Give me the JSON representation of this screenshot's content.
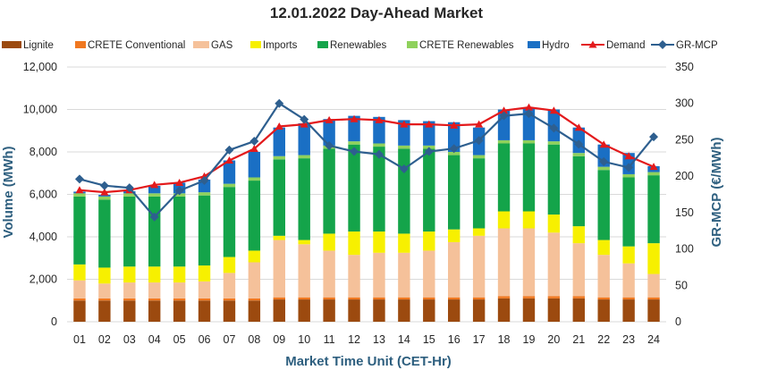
{
  "chart_data": {
    "type": "bar",
    "stacked": true,
    "title": "12.01.2022  Day-Ahead Market",
    "xlabel": "Market Time Unit (CET-Hr)",
    "ylabel": "Volume (MWh)",
    "y2label": "GR-MCP (€/MWh)",
    "ylim": [
      0,
      12000
    ],
    "y2lim": [
      0,
      350
    ],
    "yticks": [
      0,
      2000,
      4000,
      6000,
      8000,
      10000,
      12000
    ],
    "ytick_labels": [
      "0",
      "2,000",
      "4,000",
      "6,000",
      "8,000",
      "10,000",
      "12,000"
    ],
    "y2ticks": [
      0,
      50,
      100,
      150,
      200,
      250,
      300,
      350
    ],
    "categories": [
      "01",
      "02",
      "03",
      "04",
      "05",
      "06",
      "07",
      "08",
      "09",
      "10",
      "11",
      "12",
      "13",
      "14",
      "15",
      "16",
      "17",
      "18",
      "19",
      "20",
      "21",
      "22",
      "23",
      "24"
    ],
    "series": [
      {
        "name": "Lignite",
        "kind": "bar",
        "color": "#9c4a0f",
        "values": [
          1000,
          1000,
          1000,
          1000,
          1000,
          1000,
          1000,
          1000,
          1050,
          1050,
          1050,
          1050,
          1050,
          1050,
          1050,
          1050,
          1050,
          1100,
          1100,
          1100,
          1100,
          1050,
          1050,
          1050
        ]
      },
      {
        "name": "CRETE Conventional",
        "kind": "bar",
        "color": "#f07820",
        "values": [
          100,
          100,
          100,
          100,
          100,
          100,
          100,
          100,
          100,
          100,
          100,
          100,
          100,
          100,
          100,
          100,
          100,
          100,
          100,
          100,
          100,
          100,
          100,
          100
        ]
      },
      {
        "name": "GAS",
        "kind": "bar",
        "color": "#f5c19a",
        "values": [
          850,
          700,
          750,
          750,
          750,
          800,
          1200,
          1700,
          2700,
          2500,
          2200,
          2000,
          2100,
          2100,
          2200,
          2600,
          2900,
          3200,
          3200,
          3000,
          2500,
          2000,
          1600,
          1100
        ]
      },
      {
        "name": "Imports",
        "kind": "bar",
        "color": "#f7f000",
        "values": [
          750,
          750,
          750,
          750,
          750,
          750,
          750,
          550,
          200,
          200,
          800,
          1100,
          1000,
          900,
          900,
          600,
          350,
          800,
          800,
          850,
          800,
          700,
          800,
          1450
        ]
      },
      {
        "name": "Renewables",
        "kind": "bar",
        "color": "#14a44a",
        "values": [
          3200,
          3200,
          3300,
          3300,
          3300,
          3300,
          3300,
          3300,
          3600,
          3850,
          4000,
          4100,
          4000,
          4000,
          3900,
          3500,
          3300,
          3200,
          3200,
          3300,
          3300,
          3300,
          3250,
          3200
        ]
      },
      {
        "name": "CRETE Renewables",
        "kind": "bar",
        "color": "#8fd15c",
        "values": [
          150,
          150,
          150,
          150,
          150,
          150,
          150,
          150,
          150,
          150,
          150,
          150,
          150,
          150,
          150,
          150,
          150,
          150,
          150,
          150,
          150,
          150,
          150,
          150
        ]
      },
      {
        "name": "Hydro",
        "kind": "bar",
        "color": "#1a6fc4",
        "values": [
          80,
          80,
          100,
          350,
          500,
          600,
          1100,
          1200,
          1350,
          1500,
          1250,
          1200,
          1250,
          1200,
          1150,
          1400,
          1300,
          1450,
          1550,
          1500,
          1200,
          1050,
          1000,
          280
        ]
      },
      {
        "name": "Demand",
        "kind": "line",
        "axis": "left",
        "color": "#e31a1c",
        "marker": "triangle",
        "values": [
          6200,
          6100,
          6200,
          6450,
          6550,
          6850,
          7600,
          8150,
          9200,
          9300,
          9500,
          9550,
          9500,
          9300,
          9300,
          9250,
          9300,
          9950,
          10100,
          9950,
          9150,
          8350,
          7800,
          7300
        ]
      },
      {
        "name": "GR-MCP",
        "kind": "line",
        "axis": "right",
        "color": "#2e5f8f",
        "marker": "diamond",
        "values": [
          196,
          187,
          184,
          144,
          180,
          194,
          236,
          248,
          300,
          278,
          242,
          234,
          230,
          210,
          234,
          238,
          249,
          283,
          286,
          266,
          244,
          220,
          212,
          254
        ]
      }
    ]
  }
}
